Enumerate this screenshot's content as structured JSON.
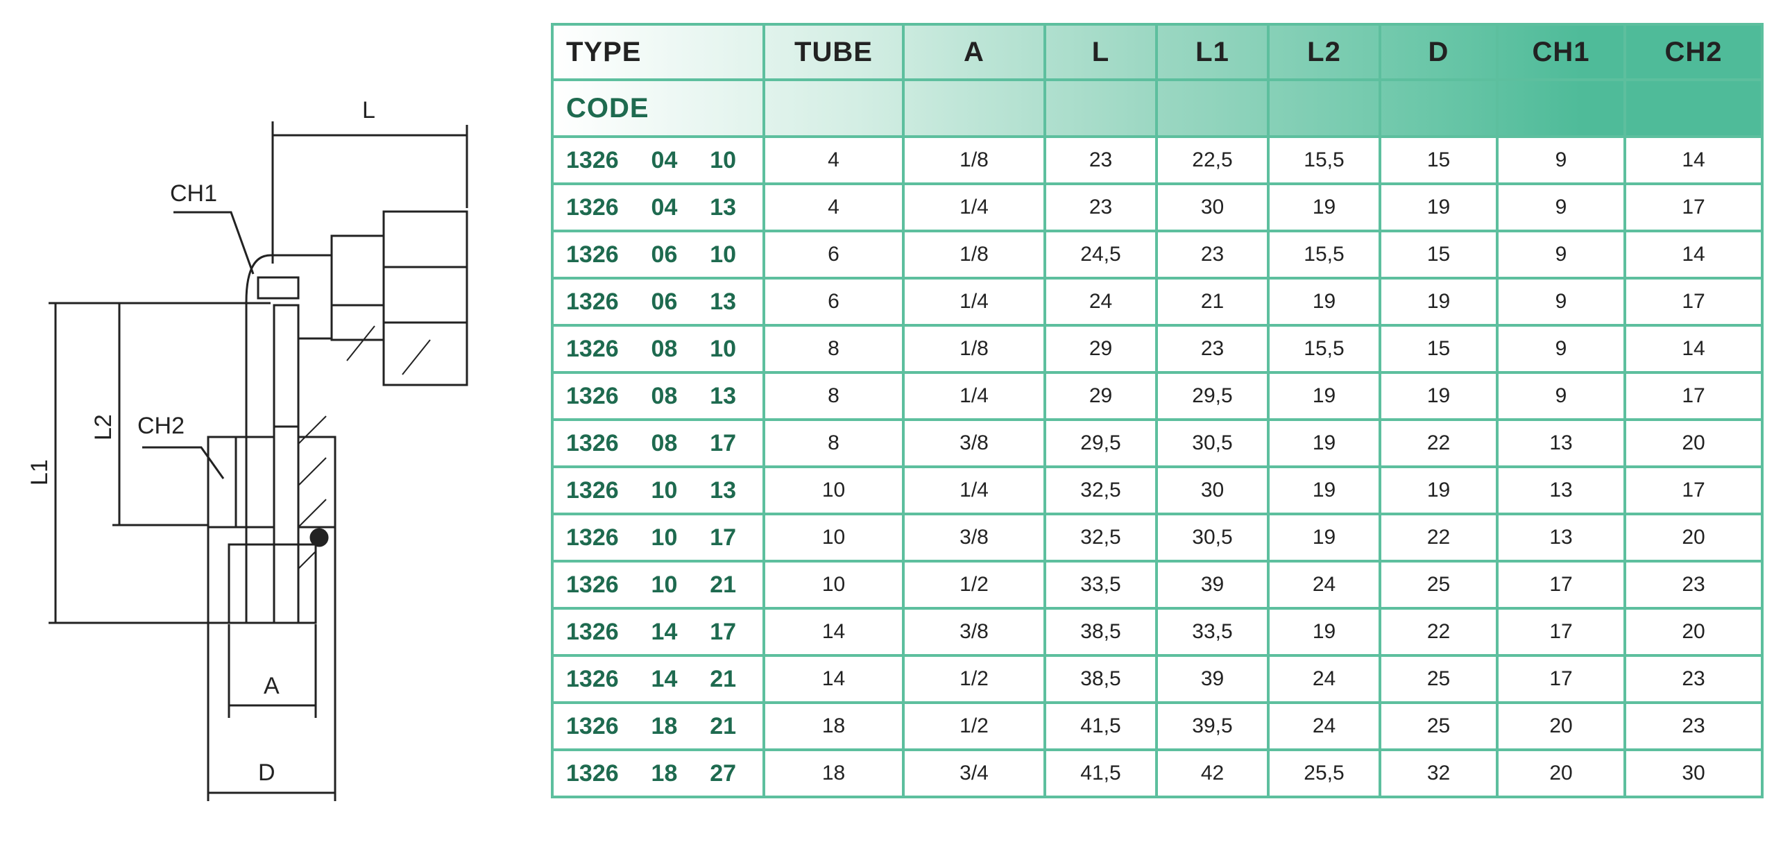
{
  "drawing": {
    "labels": {
      "L": "L",
      "CH1": "CH1",
      "L1": "L1",
      "L2": "L2",
      "CH2": "CH2",
      "A": "A",
      "D": "D"
    }
  },
  "table": {
    "header": {
      "type": "TYPE",
      "code": "CODE",
      "columns": [
        "TUBE",
        "A",
        "L",
        "L1",
        "L2",
        "D",
        "CH1",
        "CH2"
      ]
    },
    "rows": [
      {
        "code": "1326  04  10",
        "cells": [
          "4",
          "1/8",
          "23",
          "22,5",
          "15,5",
          "15",
          "9",
          "14"
        ]
      },
      {
        "code": "1326  04  13",
        "cells": [
          "4",
          "1/4",
          "23",
          "30",
          "19",
          "19",
          "9",
          "17"
        ]
      },
      {
        "code": "1326  06  10",
        "cells": [
          "6",
          "1/8",
          "24,5",
          "23",
          "15,5",
          "15",
          "9",
          "14"
        ]
      },
      {
        "code": "1326  06  13",
        "cells": [
          "6",
          "1/4",
          "24",
          "21",
          "19",
          "19",
          "9",
          "17"
        ]
      },
      {
        "code": "1326  08  10",
        "cells": [
          "8",
          "1/8",
          "29",
          "23",
          "15,5",
          "15",
          "9",
          "14"
        ]
      },
      {
        "code": "1326  08  13",
        "cells": [
          "8",
          "1/4",
          "29",
          "29,5",
          "19",
          "19",
          "9",
          "17"
        ]
      },
      {
        "code": "1326  08  17",
        "cells": [
          "8",
          "3/8",
          "29,5",
          "30,5",
          "19",
          "22",
          "13",
          "20"
        ]
      },
      {
        "code": "1326  10  13",
        "cells": [
          "10",
          "1/4",
          "32,5",
          "30",
          "19",
          "19",
          "13",
          "17"
        ]
      },
      {
        "code": "1326  10  17",
        "cells": [
          "10",
          "3/8",
          "32,5",
          "30,5",
          "19",
          "22",
          "13",
          "20"
        ]
      },
      {
        "code": "1326  10  21",
        "cells": [
          "10",
          "1/2",
          "33,5",
          "39",
          "24",
          "25",
          "17",
          "23"
        ]
      },
      {
        "code": "1326  14  17",
        "cells": [
          "14",
          "3/8",
          "38,5",
          "33,5",
          "19",
          "22",
          "17",
          "20"
        ]
      },
      {
        "code": "1326  14  21",
        "cells": [
          "14",
          "1/2",
          "38,5",
          "39",
          "24",
          "25",
          "17",
          "23"
        ]
      },
      {
        "code": "1326  18  21",
        "cells": [
          "18",
          "1/2",
          "41,5",
          "39,5",
          "24",
          "25",
          "20",
          "23"
        ]
      },
      {
        "code": "1326  18  27",
        "cells": [
          "18",
          "3/4",
          "41,5",
          "42",
          "25,5",
          "32",
          "20",
          "30"
        ]
      }
    ]
  }
}
